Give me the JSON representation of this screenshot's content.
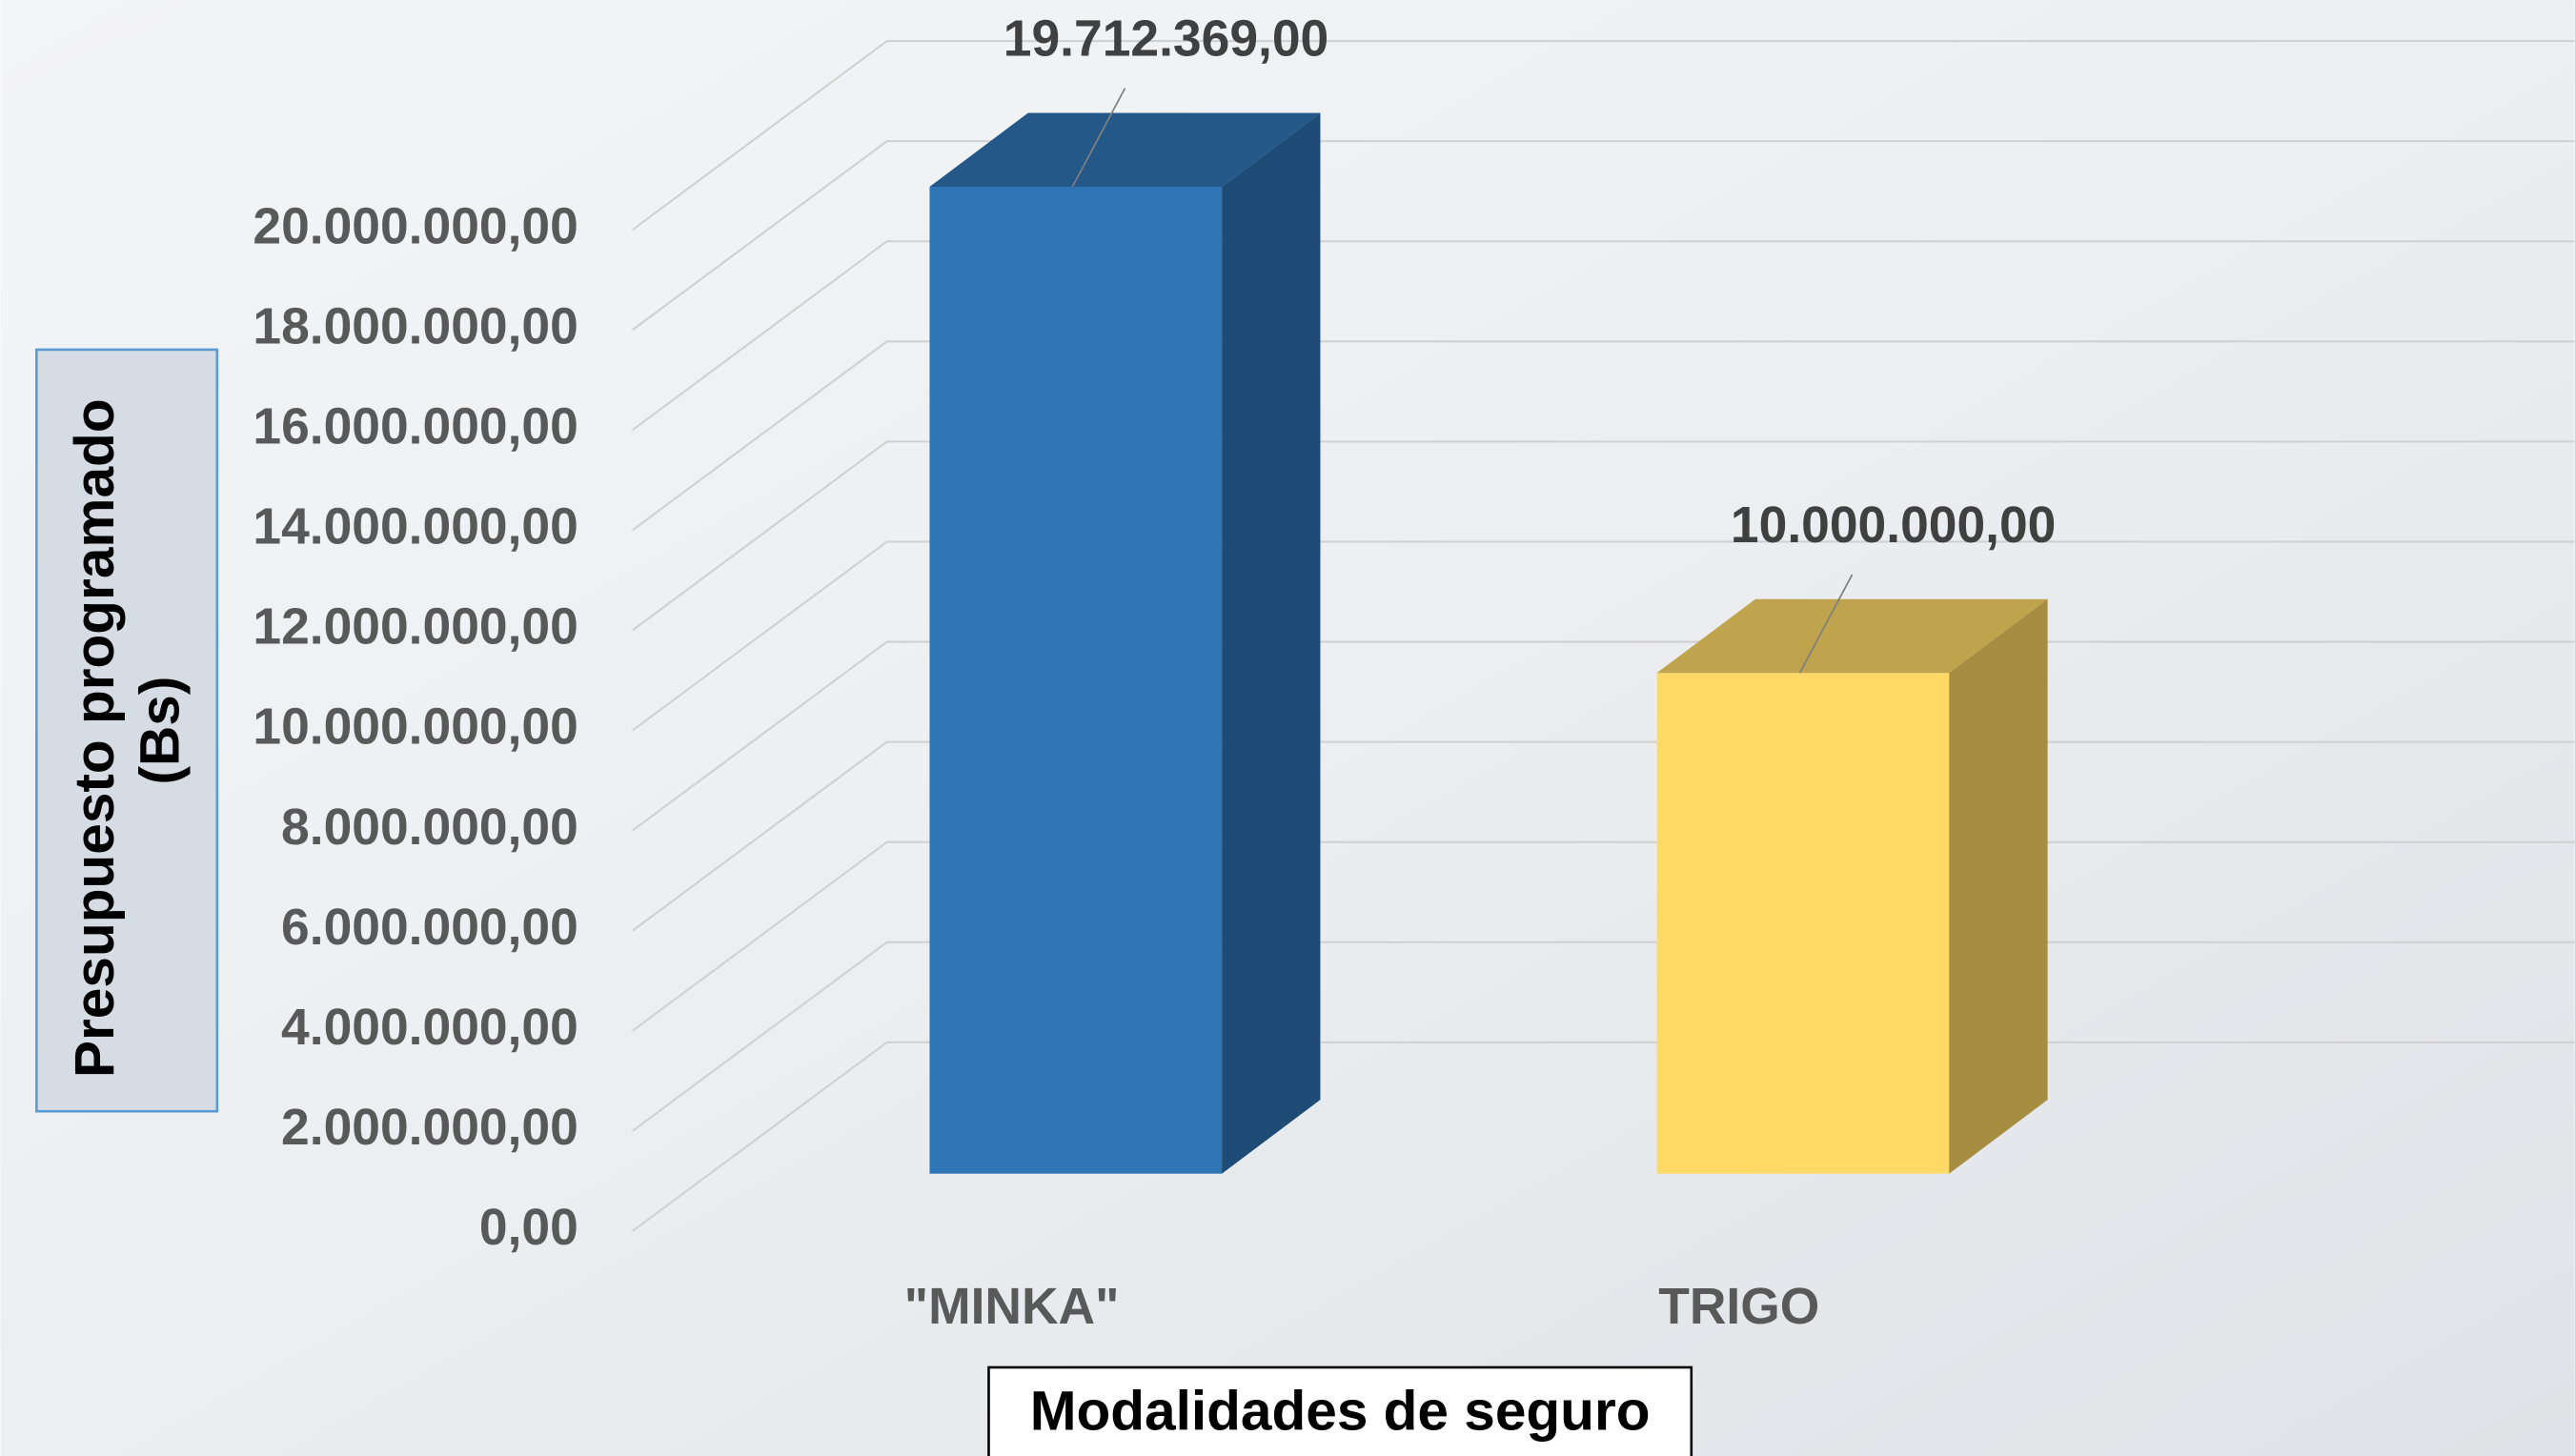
{
  "chart_data": {
    "type": "bar3d",
    "x_label": "Modalidades de seguro",
    "y_label": [
      "Presupuesto programado",
      "(Bs)"
    ],
    "categories": [
      "\"MINKA\"",
      "TRIGO"
    ],
    "values": [
      19712369,
      10000000
    ],
    "value_labels": [
      "19.712.369,00",
      "10.000.000,00"
    ],
    "colors": [
      "#2e75b6",
      "#ffd966"
    ],
    "ylim": [
      0,
      20000000
    ],
    "yticks": [
      {
        "value": 0,
        "label": "0,00"
      },
      {
        "value": 2000000,
        "label": "2.000.000,00"
      },
      {
        "value": 4000000,
        "label": "4.000.000,00"
      },
      {
        "value": 6000000,
        "label": "6.000.000,00"
      },
      {
        "value": 8000000,
        "label": "8.000.000,00"
      },
      {
        "value": 10000000,
        "label": "10.000.000,00"
      },
      {
        "value": 12000000,
        "label": "12.000.000,00"
      },
      {
        "value": 14000000,
        "label": "14.000.000,00"
      },
      {
        "value": 16000000,
        "label": "16.000.000,00"
      },
      {
        "value": 18000000,
        "label": "18.000.000,00"
      },
      {
        "value": 20000000,
        "label": "20.000.000,00"
      }
    ],
    "grid": true
  }
}
